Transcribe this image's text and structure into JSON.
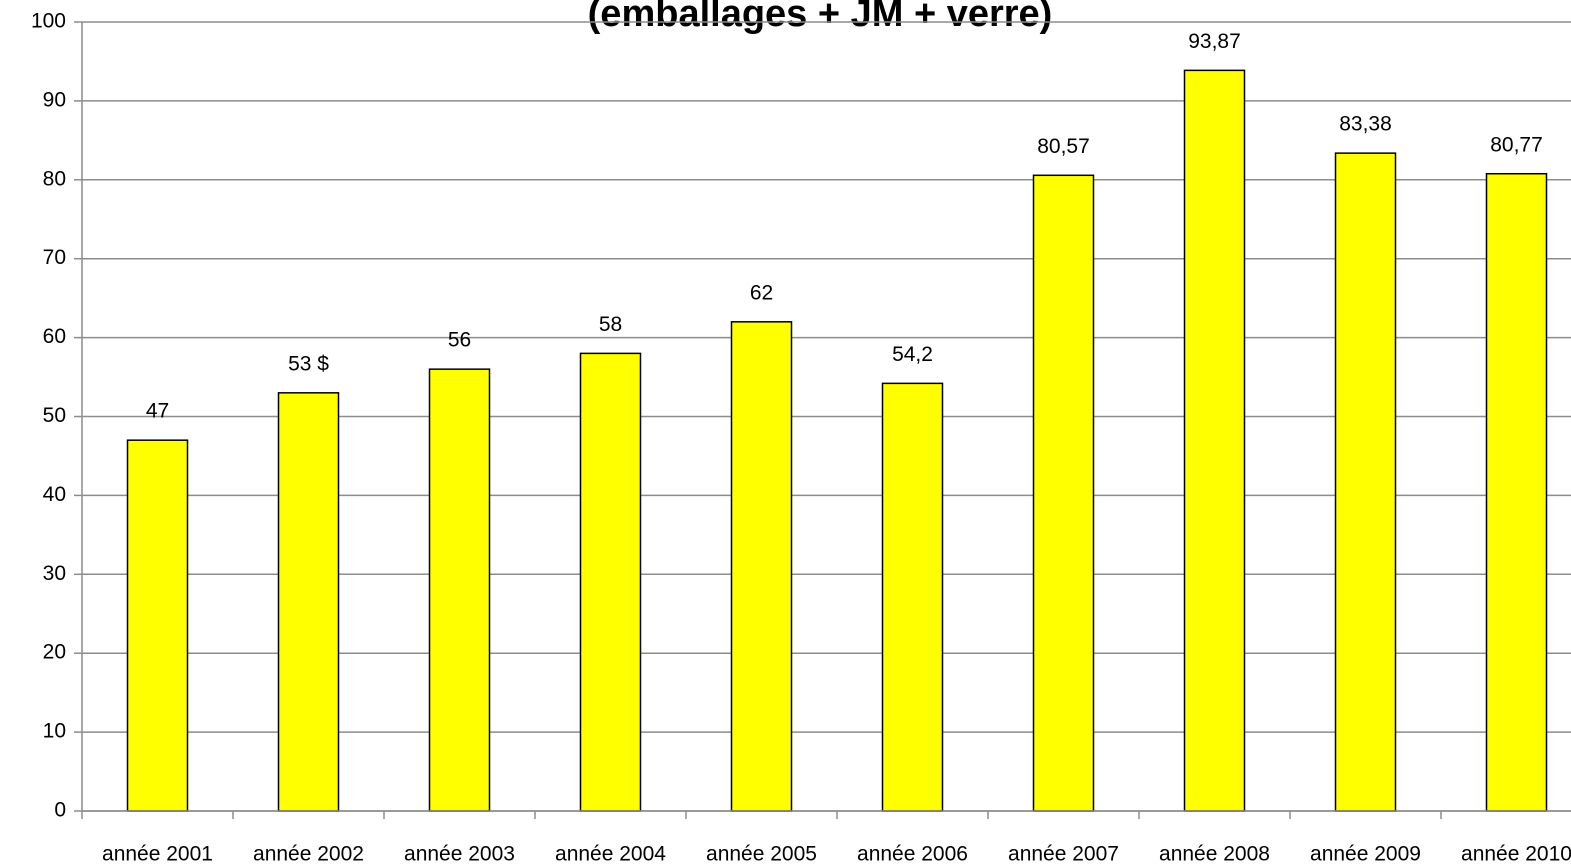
{
  "chart_data": {
    "type": "bar",
    "title": "(emballages + JM + verre)",
    "categories": [
      "année 2001",
      "année 2002",
      "année 2003",
      "année 2004",
      "année 2005",
      "année 2006",
      "année 2007",
      "année 2008",
      "année 2009",
      "année 2010"
    ],
    "values": [
      47,
      53,
      56,
      58,
      62,
      54.2,
      80.57,
      93.87,
      83.38,
      80.77
    ],
    "value_labels": [
      "47",
      "53 $",
      "56",
      "58",
      "62",
      "54,2",
      "80,57",
      "93,87",
      "83,38",
      "80,77"
    ],
    "color": "#ffff00",
    "ylim": [
      0,
      100
    ],
    "yticks": [
      0,
      10,
      20,
      30,
      40,
      50,
      60,
      70,
      80,
      90,
      100
    ],
    "grid": true
  }
}
